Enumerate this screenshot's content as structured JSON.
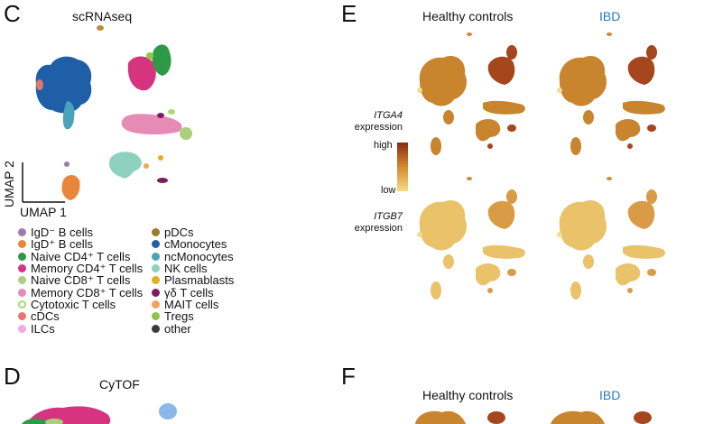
{
  "panels": {
    "c": {
      "letter": "C",
      "title": "scRNAseq",
      "axis_y": "UMAP 2",
      "axis_x": "UMAP 1"
    },
    "d": {
      "letter": "D",
      "title": "CyTOF"
    },
    "e": {
      "letter": "E",
      "col_healthy": "Healthy controls",
      "col_ibd": "IBD",
      "row1_gene": "ITGA4",
      "row1_suffix": "expression",
      "row2_gene": "ITGB7",
      "row2_suffix": "expression",
      "scale_high": "high",
      "scale_low": "low"
    },
    "f": {
      "letter": "F",
      "col_healthy": "Healthy controls",
      "col_ibd": "IBD"
    }
  },
  "legend": {
    "left": [
      {
        "label": "IgD⁻ B cells",
        "color": "#a07aaa"
      },
      {
        "label": "IgD⁺ B cells",
        "color": "#e8873a"
      },
      {
        "label": "Naive CD4⁺ T cells",
        "color": "#2e9a47"
      },
      {
        "label": "Memory CD4⁺ T cells",
        "color": "#d6347f"
      },
      {
        "label": "Naive CD8⁺ T cells",
        "color": "#a9d17c"
      },
      {
        "label": "Memory CD8⁺ T cells",
        "color": "#e58bb6"
      },
      {
        "label": "Cytotoxic T cells",
        "color": "#a6dd6a",
        "ring": true
      },
      {
        "label": "cDCs",
        "color": "#e4776b"
      },
      {
        "label": "ILCs",
        "color": "#f3a8e3"
      }
    ],
    "right": [
      {
        "label": "pDCs",
        "color": "#9a7d2a"
      },
      {
        "label": "cMonocytes",
        "color": "#1f5fa8"
      },
      {
        "label": "ncMonocytes",
        "color": "#4aa3b9"
      },
      {
        "label": "NK cells",
        "color": "#8fd1bf"
      },
      {
        "label": "Plasmablasts",
        "color": "#e0b022"
      },
      {
        "label": "γδ T cells",
        "color": "#7a1f5c"
      },
      {
        "label": "MAIT cells",
        "color": "#f0a45c"
      },
      {
        "label": "Tregs",
        "color": "#8fc44a"
      },
      {
        "label": "other",
        "color": "#3b3b3b"
      }
    ]
  },
  "colors": {
    "expr_low": "#f6dc8a",
    "expr_mid": "#d4892e",
    "expr_high": "#8a2a12",
    "ibd_text": "#2f7ab8"
  }
}
